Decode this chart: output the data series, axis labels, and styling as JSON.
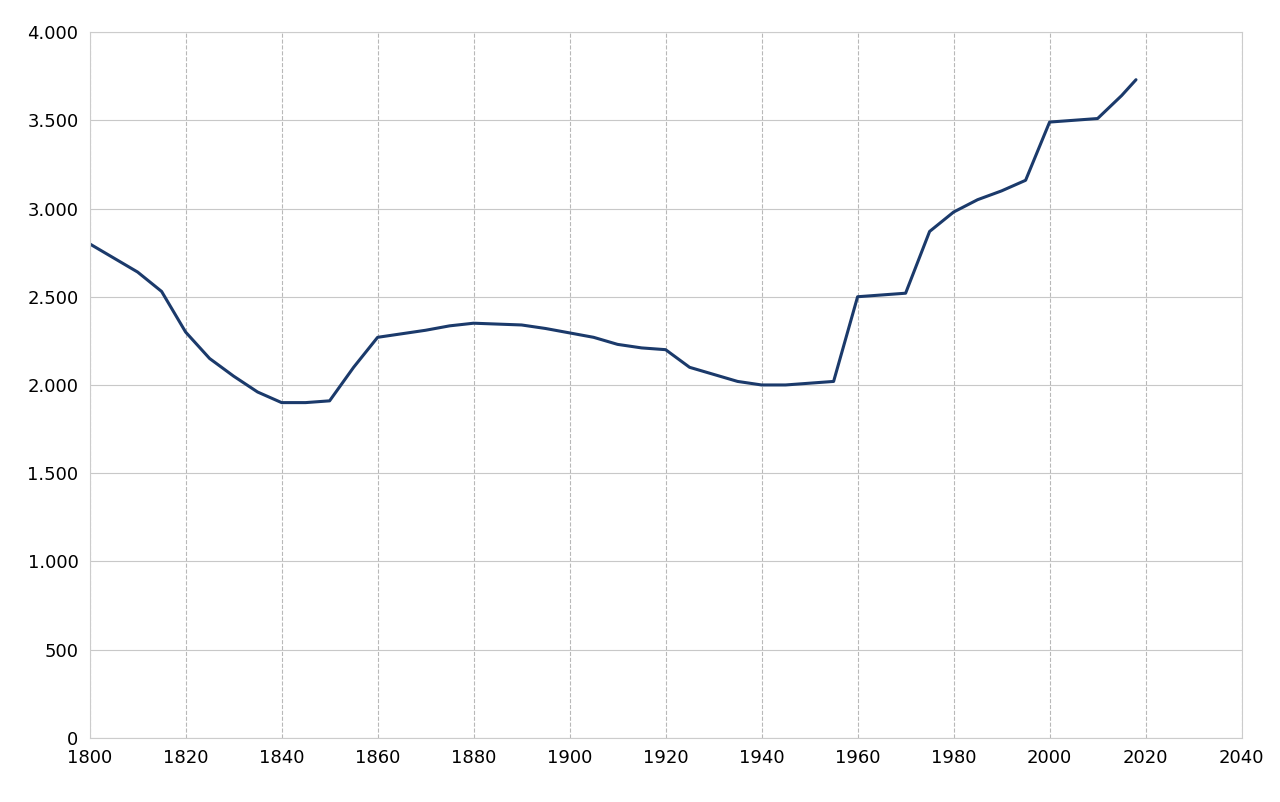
{
  "years": [
    1800,
    1805,
    1810,
    1815,
    1820,
    1825,
    1830,
    1835,
    1840,
    1845,
    1850,
    1855,
    1860,
    1865,
    1870,
    1875,
    1880,
    1885,
    1890,
    1895,
    1900,
    1905,
    1910,
    1915,
    1920,
    1925,
    1930,
    1935,
    1940,
    1945,
    1950,
    1955,
    1960,
    1965,
    1970,
    1975,
    1980,
    1985,
    1990,
    1995,
    2000,
    2005,
    2010,
    2015,
    2018
  ],
  "values": [
    2800,
    2720,
    2640,
    2530,
    2300,
    2150,
    2050,
    1960,
    1900,
    1900,
    1910,
    2100,
    2270,
    2290,
    2310,
    2335,
    2350,
    2345,
    2340,
    2320,
    2295,
    2270,
    2230,
    2210,
    2200,
    2100,
    2060,
    2020,
    2000,
    2000,
    2010,
    2020,
    2500,
    2510,
    2520,
    2870,
    2980,
    3050,
    3100,
    3160,
    3490,
    3500,
    3510,
    3640,
    3730
  ],
  "line_color": "#1b3a6b",
  "line_width": 2.2,
  "background_color": "#ffffff",
  "grid_color_h": "#c8c8c8",
  "grid_color_v": "#b8b8b8",
  "xlim": [
    1800,
    2040
  ],
  "ylim": [
    0,
    4000
  ],
  "xticks": [
    1800,
    1820,
    1840,
    1860,
    1880,
    1900,
    1920,
    1940,
    1960,
    1980,
    2000,
    2020,
    2040
  ],
  "yticks": [
    0,
    500,
    1000,
    1500,
    2000,
    2500,
    3000,
    3500,
    4000
  ],
  "ytick_labels": [
    "0",
    "500",
    "1.000",
    "1.500",
    "2.000",
    "2.500",
    "3.000",
    "3.500",
    "4.000"
  ],
  "tick_fontsize": 13
}
